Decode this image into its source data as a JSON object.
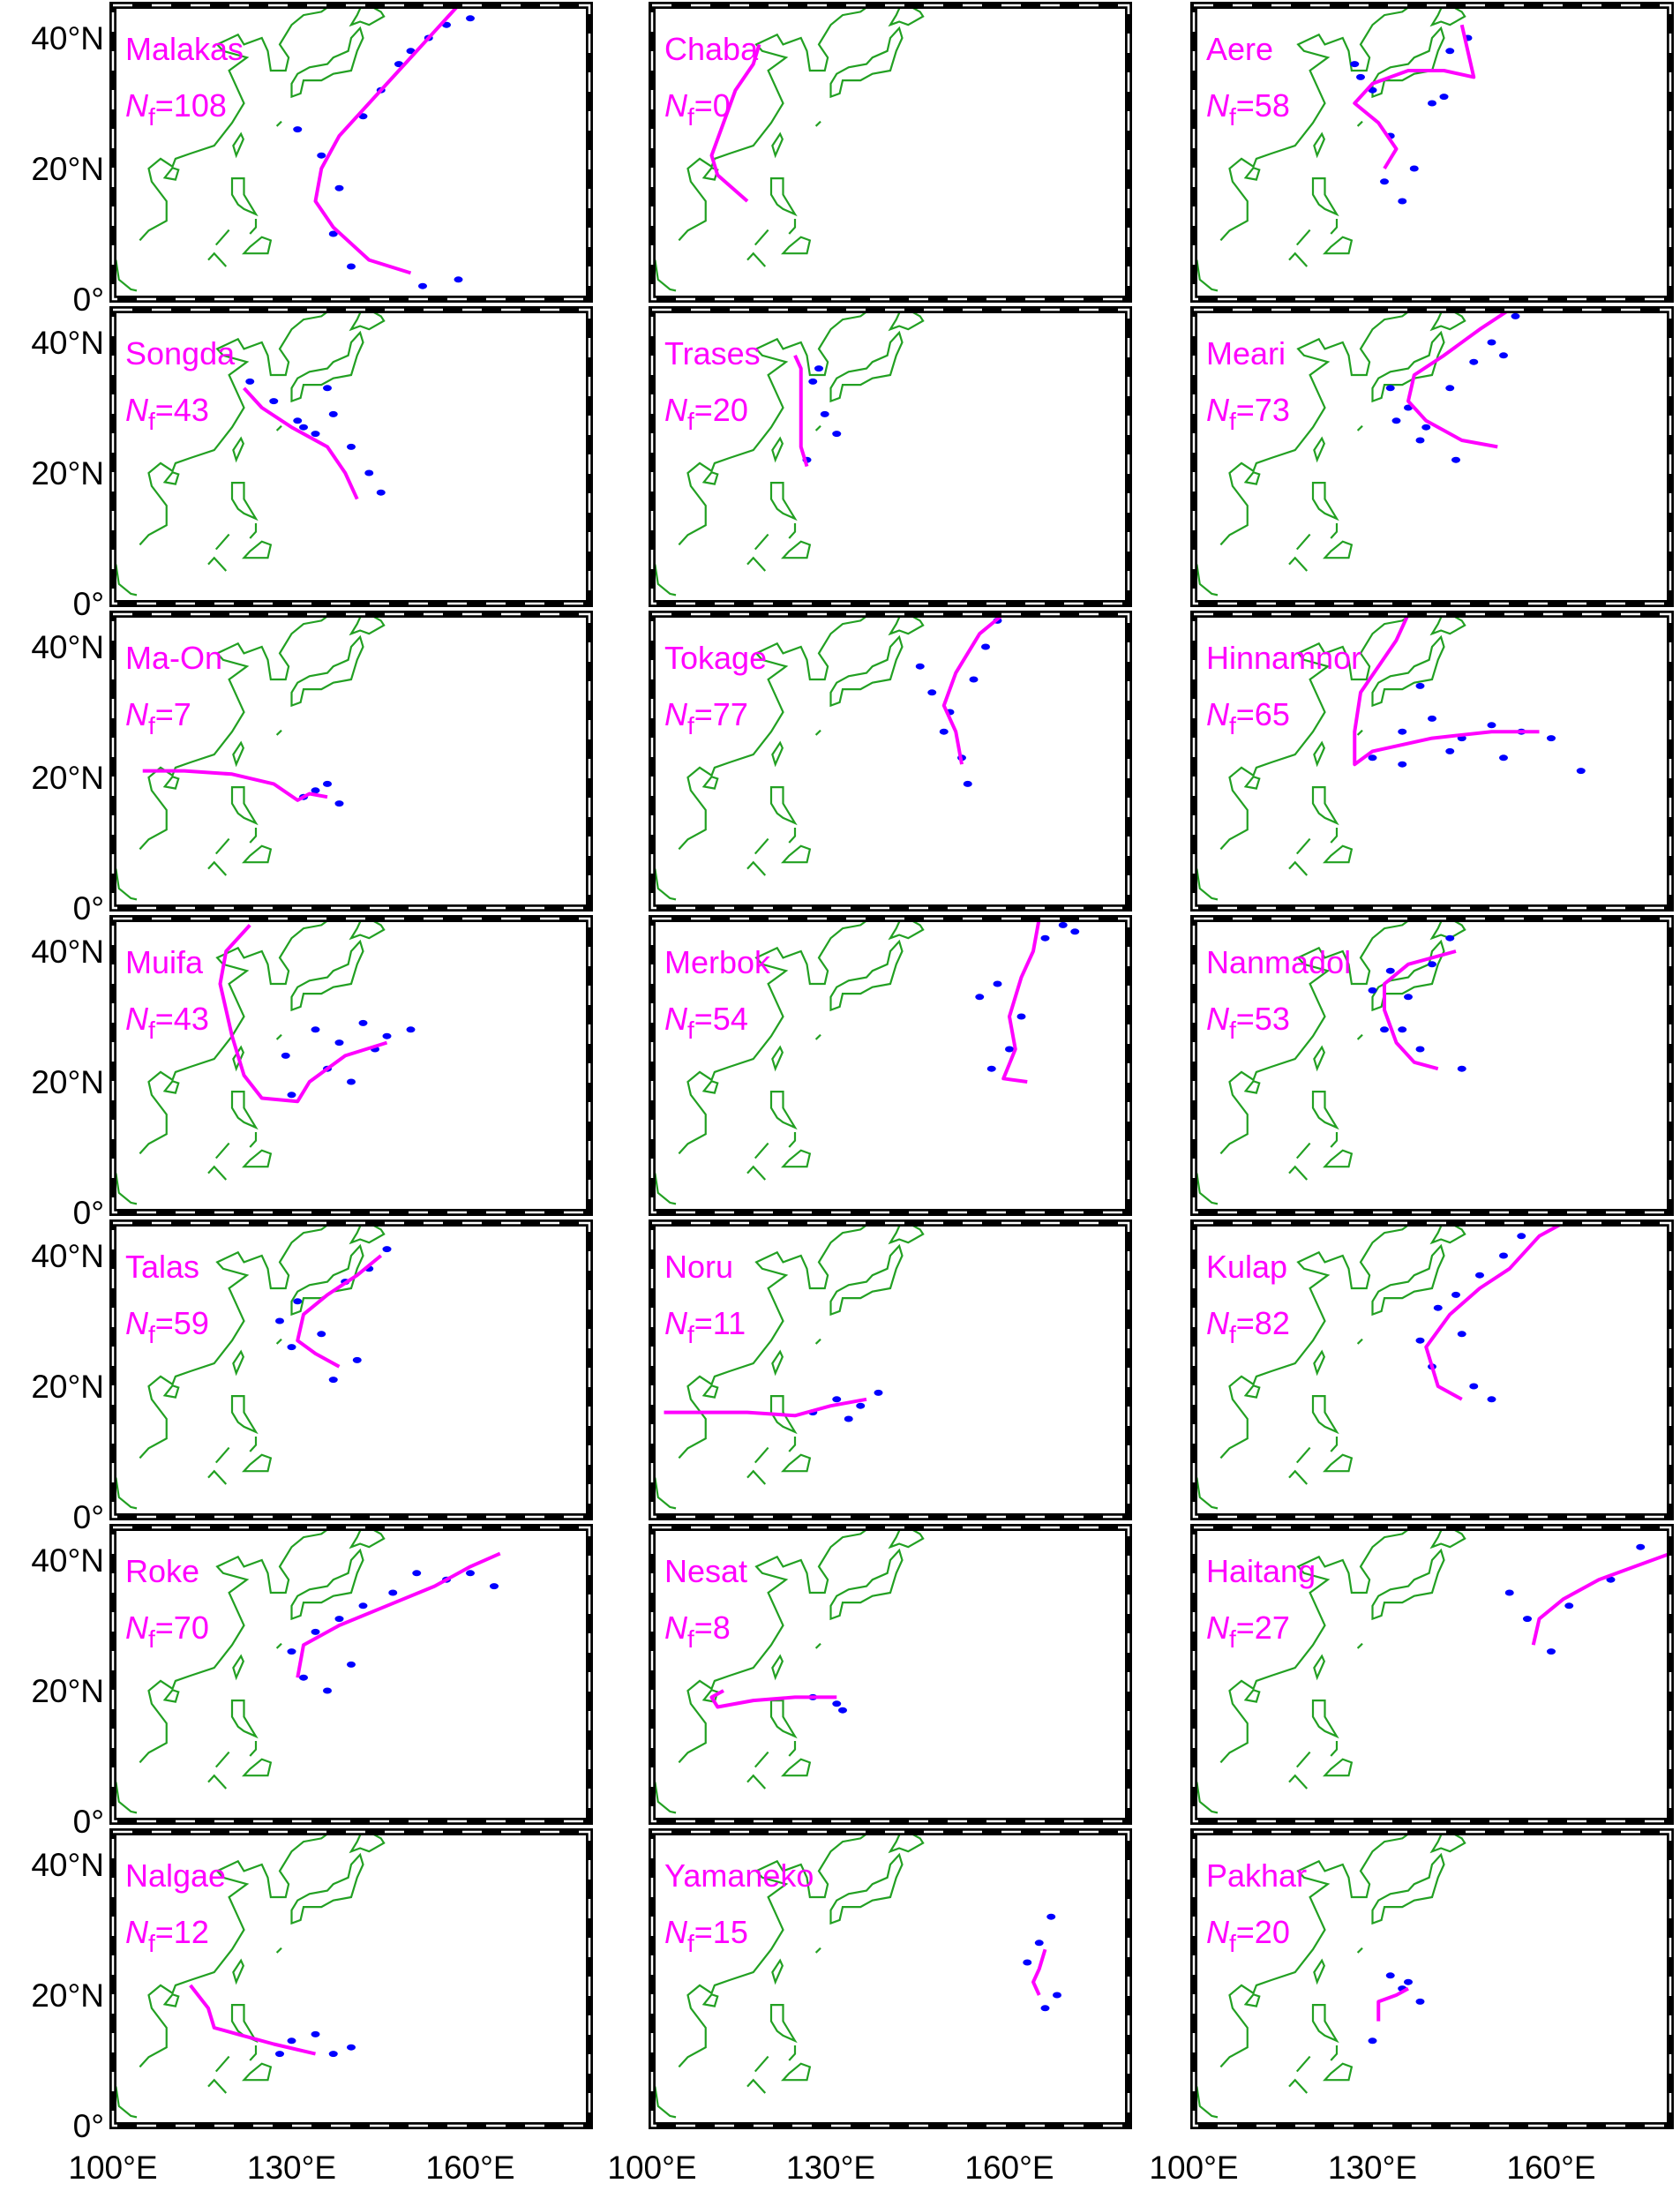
{
  "map": {
    "lonlim": [
      100,
      180
    ],
    "latlim": [
      0,
      45
    ],
    "lon_ticks": [
      {
        "value": 100,
        "label": "100°E"
      },
      {
        "value": 130,
        "label": "130°E"
      },
      {
        "value": 160,
        "label": "160°E"
      }
    ],
    "lat_ticks": [
      {
        "value": 0,
        "label": "0°"
      },
      {
        "value": 20,
        "label": "20°N"
      },
      {
        "value": 40,
        "label": "40°N"
      }
    ],
    "count_symbol": "N",
    "count_subscript": "f",
    "track_color": "#ff00ff",
    "detection_color": "#0000ff",
    "label_color": "#ff00ff",
    "coast_color": "#22a022",
    "panels": [
      {
        "name": "Malakas",
        "count": "=108",
        "track": {
          "lon": [
            150,
            143,
            137,
            134,
            135,
            138,
            143,
            149,
            155,
            158
          ],
          "lat": [
            4,
            6,
            11,
            15,
            20,
            25,
            30,
            36,
            42,
            45
          ]
        },
        "detections": {
          "lon": [
            131,
            135,
            138,
            142,
            145,
            148,
            150,
            153,
            156,
            160,
            137,
            140,
            152,
            158
          ],
          "lat": [
            26,
            22,
            17,
            28,
            32,
            36,
            38,
            40,
            42,
            43,
            10,
            5,
            2,
            3
          ]
        }
      },
      {
        "name": "Chaba",
        "count": "=0",
        "track": {
          "lon": [
            116,
            111,
            110,
            112,
            114,
            117,
            118
          ],
          "lat": [
            15,
            19,
            22,
            27,
            32,
            36,
            39
          ]
        }
      },
      {
        "name": "Aere",
        "count": "=58",
        "track": {
          "lon": [
            132,
            134,
            131,
            127,
            130,
            136,
            142,
            147,
            146,
            145
          ],
          "lat": [
            20,
            23,
            27,
            30,
            33,
            35,
            35,
            34,
            38,
            42
          ]
        },
        "detections": {
          "lon": [
            127,
            130,
            133,
            137,
            140,
            143,
            146,
            132,
            135,
            128,
            142
          ],
          "lat": [
            36,
            32,
            25,
            20,
            30,
            38,
            40,
            18,
            15,
            34,
            31
          ]
        }
      },
      {
        "name": "Songda",
        "count": "=43",
        "track": {
          "lon": [
            141,
            139,
            136,
            130,
            125,
            122
          ],
          "lat": [
            16,
            20,
            24,
            27,
            30,
            33
          ]
        },
        "detections": {
          "lon": [
            123,
            127,
            131,
            134,
            137,
            140,
            143,
            145,
            132,
            136
          ],
          "lat": [
            34,
            31,
            28,
            26,
            29,
            24,
            20,
            17,
            27,
            33
          ]
        }
      },
      {
        "name": "Trases",
        "count": "=20",
        "track": {
          "lon": [
            126,
            125,
            125,
            125,
            124
          ],
          "lat": [
            21,
            24,
            30,
            36,
            38
          ]
        },
        "detections": {
          "lon": [
            127,
            129,
            131,
            128,
            126
          ],
          "lat": [
            34,
            29,
            26,
            36,
            22
          ]
        }
      },
      {
        "name": "Meari",
        "count": "=73",
        "track": {
          "lon": [
            151,
            145,
            139,
            136,
            137,
            142,
            148,
            153
          ],
          "lat": [
            24,
            25,
            28,
            31,
            35,
            38,
            42,
            45
          ]
        },
        "detections": {
          "lon": [
            133,
            136,
            139,
            143,
            147,
            150,
            152,
            144,
            138,
            134,
            154
          ],
          "lat": [
            33,
            30,
            27,
            33,
            37,
            40,
            38,
            22,
            25,
            28,
            44
          ]
        }
      },
      {
        "name": "Ma-On",
        "count": "=7",
        "track": {
          "lon": [
            136,
            133,
            131,
            127,
            120,
            112,
            105
          ],
          "lat": [
            17,
            17.5,
            16.5,
            19,
            20.5,
            21,
            21
          ]
        },
        "detections": {
          "lon": [
            134,
            136,
            138,
            132
          ],
          "lat": [
            18,
            19,
            16,
            17
          ]
        }
      },
      {
        "name": "Tokage",
        "count": "=77",
        "track": {
          "lon": [
            152,
            151,
            149,
            151,
            155,
            159
          ],
          "lat": [
            22,
            27,
            31,
            36,
            42,
            45
          ]
        },
        "detections": {
          "lon": [
            145,
            147,
            150,
            154,
            156,
            149,
            152,
            153,
            158
          ],
          "lat": [
            37,
            33,
            30,
            35,
            40,
            27,
            23,
            19,
            44
          ]
        }
      },
      {
        "name": "Hinnamnor",
        "count": "=65",
        "track": {
          "lon": [
            158,
            150,
            140,
            130,
            127,
            127,
            128,
            131,
            134,
            136
          ],
          "lat": [
            27,
            27,
            26,
            24,
            22,
            27,
            33,
            37,
            41,
            45
          ]
        },
        "detections": {
          "lon": [
            130,
            135,
            140,
            145,
            150,
            155,
            160,
            135,
            143,
            152,
            165,
            138
          ],
          "lat": [
            23,
            27,
            29,
            26,
            28,
            27,
            26,
            22,
            24,
            23,
            21,
            34
          ]
        }
      },
      {
        "name": "Muifa",
        "count": "=43",
        "track": {
          "lon": [
            146,
            139,
            133,
            131,
            125,
            122,
            120,
            118,
            119,
            123
          ],
          "lat": [
            26,
            24,
            20,
            17,
            17.5,
            21,
            27,
            35,
            40,
            44
          ]
        },
        "detections": {
          "lon": [
            129,
            134,
            138,
            142,
            146,
            150,
            136,
            140,
            130,
            144
          ],
          "lat": [
            24,
            28,
            26,
            29,
            27,
            28,
            22,
            20,
            18,
            25
          ]
        }
      },
      {
        "name": "Merbok",
        "count": "=54",
        "track": {
          "lon": [
            163,
            159,
            161,
            160,
            162,
            164,
            165
          ],
          "lat": [
            20,
            20.5,
            25,
            30,
            36,
            40,
            45
          ]
        },
        "detections": {
          "lon": [
            155,
            158,
            162,
            166,
            169,
            171,
            160,
            157
          ],
          "lat": [
            33,
            35,
            30,
            42,
            44,
            43,
            25,
            22
          ]
        }
      },
      {
        "name": "Nanmadol",
        "count": "=53",
        "track": {
          "lon": [
            141,
            137,
            134,
            132,
            132,
            136,
            144
          ],
          "lat": [
            22,
            23,
            26,
            31,
            35,
            38,
            40
          ]
        },
        "detections": {
          "lon": [
            130,
            133,
            136,
            140,
            143,
            135,
            138,
            145,
            132
          ],
          "lat": [
            34,
            37,
            33,
            38,
            42,
            28,
            25,
            22,
            28
          ]
        }
      },
      {
        "name": "Talas",
        "count": "=59",
        "track": {
          "lon": [
            138,
            134,
            131,
            132,
            136,
            141,
            145
          ],
          "lat": [
            23,
            25,
            27,
            31,
            34,
            37,
            40
          ]
        },
        "detections": {
          "lon": [
            128,
            131,
            135,
            139,
            143,
            146,
            130,
            137,
            141
          ],
          "lat": [
            30,
            33,
            28,
            36,
            38,
            41,
            26,
            21,
            24
          ]
        }
      },
      {
        "name": "Noru",
        "count": "=11",
        "track": {
          "lon": [
            136,
            130,
            124,
            116,
            108,
            102
          ],
          "lat": [
            18,
            17,
            15.5,
            16,
            16,
            16
          ]
        },
        "detections": {
          "lon": [
            127,
            131,
            135,
            138,
            133
          ],
          "lat": [
            16,
            18,
            17,
            19,
            15
          ]
        }
      },
      {
        "name": "Kulap",
        "count": "=82",
        "track": {
          "lon": [
            145,
            141,
            139,
            143,
            148,
            153,
            158,
            162
          ],
          "lat": [
            18,
            20,
            26,
            31,
            35,
            38,
            43,
            45
          ]
        },
        "detections": {
          "lon": [
            138,
            141,
            144,
            148,
            152,
            155,
            140,
            147,
            150,
            145
          ],
          "lat": [
            27,
            32,
            34,
            37,
            40,
            43,
            23,
            20,
            18,
            28
          ]
        }
      },
      {
        "name": "Roke",
        "count": "=70",
        "track": {
          "lon": [
            131,
            132,
            138,
            146,
            154,
            160,
            165
          ],
          "lat": [
            22,
            27,
            30,
            33,
            36,
            39,
            41
          ]
        },
        "detections": {
          "lon": [
            130,
            134,
            138,
            142,
            147,
            151,
            156,
            160,
            164,
            132,
            136,
            140
          ],
          "lat": [
            26,
            29,
            31,
            33,
            35,
            38,
            37,
            38,
            36,
            22,
            20,
            24
          ]
        }
      },
      {
        "name": "Nesat",
        "count": "=8",
        "track": {
          "lon": [
            131,
            124,
            117,
            111,
            110,
            112
          ],
          "lat": [
            19,
            19,
            18.5,
            17.5,
            19,
            20
          ]
        },
        "detections": {
          "lon": [
            127,
            131,
            132
          ],
          "lat": [
            19,
            18,
            17
          ]
        }
      },
      {
        "name": "Haitang",
        "count": "=27",
        "track": {
          "lon": [
            157,
            158,
            162,
            168,
            174,
            180
          ],
          "lat": [
            27,
            31,
            34,
            37,
            39,
            41
          ]
        },
        "detections": {
          "lon": [
            153,
            156,
            160,
            163,
            170,
            175
          ],
          "lat": [
            35,
            31,
            26,
            33,
            37,
            42
          ]
        }
      },
      {
        "name": "Nalgae",
        "count": "=12",
        "track": {
          "lon": [
            134,
            127,
            121,
            117,
            116,
            113
          ],
          "lat": [
            11,
            12.5,
            14,
            15,
            18,
            21.5
          ]
        },
        "detections": {
          "lon": [
            130,
            134,
            137,
            140,
            128
          ],
          "lat": [
            13,
            14,
            11,
            12,
            11
          ]
        }
      },
      {
        "name": "Yamaneko",
        "count": "=15",
        "track": {
          "lon": [
            165,
            164,
            165,
            166
          ],
          "lat": [
            20,
            22,
            24,
            27
          ]
        },
        "detections": {
          "lon": [
            165,
            167,
            168,
            163,
            166
          ],
          "lat": [
            28,
            32,
            20,
            25,
            18
          ]
        }
      },
      {
        "name": "Pakhar",
        "count": "=20",
        "track": {
          "lon": [
            131,
            131,
            134,
            136
          ],
          "lat": [
            16,
            19,
            20,
            21
          ]
        },
        "detections": {
          "lon": [
            133,
            136,
            138,
            135,
            130
          ],
          "lat": [
            23,
            22,
            19,
            21,
            13
          ]
        }
      }
    ]
  }
}
